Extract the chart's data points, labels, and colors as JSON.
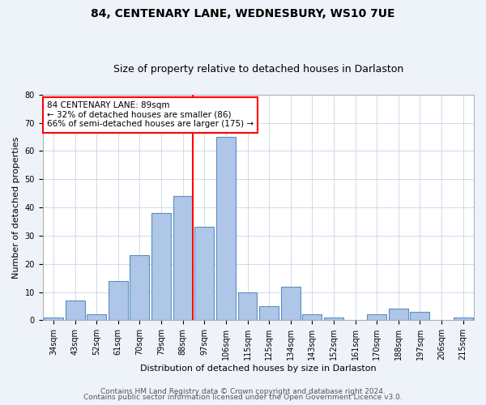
{
  "title": "84, CENTENARY LANE, WEDNESBURY, WS10 7UE",
  "subtitle": "Size of property relative to detached houses in Darlaston",
  "xlabel": "Distribution of detached houses by size in Darlaston",
  "ylabel": "Number of detached properties",
  "categories": [
    "34sqm",
    "43sqm",
    "52sqm",
    "61sqm",
    "70sqm",
    "79sqm",
    "88sqm",
    "97sqm",
    "106sqm",
    "115sqm",
    "125sqm",
    "134sqm",
    "143sqm",
    "152sqm",
    "161sqm",
    "170sqm",
    "188sqm",
    "197sqm",
    "206sqm",
    "215sqm"
  ],
  "values": [
    1,
    7,
    2,
    14,
    23,
    38,
    44,
    33,
    65,
    10,
    5,
    12,
    2,
    1,
    0,
    2,
    4,
    3,
    0,
    1
  ],
  "bar_color": "#aec6e8",
  "bar_edge_color": "#5a8fc0",
  "vline_x_index": 6,
  "vline_color": "red",
  "annotation_text": "84 CENTENARY LANE: 89sqm\n← 32% of detached houses are smaller (86)\n66% of semi-detached houses are larger (175) →",
  "annotation_box_color": "white",
  "annotation_box_edge": "red",
  "ylim": [
    0,
    80
  ],
  "yticks": [
    0,
    10,
    20,
    30,
    40,
    50,
    60,
    70,
    80
  ],
  "footer_line1": "Contains HM Land Registry data © Crown copyright and database right 2024.",
  "footer_line2": "Contains public sector information licensed under the Open Government Licence v3.0.",
  "bg_color": "#eef2f9",
  "plot_bg_color": "#ffffff",
  "title_fontsize": 10,
  "subtitle_fontsize": 9,
  "xlabel_fontsize": 8,
  "ylabel_fontsize": 8,
  "tick_fontsize": 7,
  "annotation_fontsize": 7.5,
  "footer_fontsize": 6.5
}
